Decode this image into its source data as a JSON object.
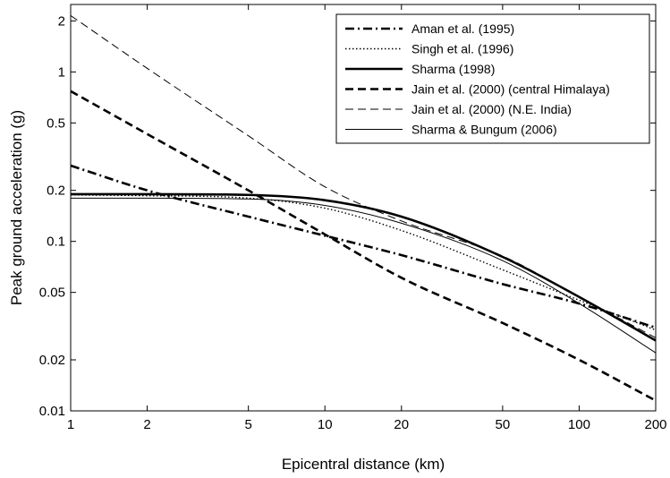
{
  "chart_data": {
    "type": "line",
    "title": "",
    "xlabel": "Epicentral distance (km)",
    "ylabel": "Peak ground acceleration (g)",
    "xscale": "log",
    "yscale": "log",
    "xlim": [
      1,
      200
    ],
    "ylim": [
      0.01,
      2.5
    ],
    "grid": false,
    "legend_position": "top-right",
    "x_ticks": [
      1,
      2,
      5,
      10,
      20,
      50,
      100,
      200
    ],
    "x_tick_labels": [
      "1",
      "2",
      "5",
      "10",
      "20",
      "50",
      "100",
      "200"
    ],
    "y_ticks": [
      0.01,
      0.02,
      0.05,
      0.1,
      0.2,
      0.5,
      1,
      2
    ],
    "y_tick_labels": [
      "0.01",
      "0.02",
      "0.05",
      "0.1",
      "0.2",
      "0.5",
      "1",
      "2"
    ],
    "x": [
      1,
      2,
      5,
      10,
      20,
      50,
      100,
      200
    ],
    "series": [
      {
        "name": "Aman et al. (1995)",
        "style": "dash-dot",
        "color": "#000000",
        "weight": "bold",
        "values": [
          0.28,
          0.2,
          0.14,
          0.108,
          0.083,
          0.056,
          0.043,
          0.031
        ]
      },
      {
        "name": "Singh et al. (1996)",
        "style": "dotted",
        "color": "#000000",
        "weight": "normal",
        "values": [
          0.188,
          0.186,
          0.18,
          0.157,
          0.116,
          0.068,
          0.045,
          0.03
        ]
      },
      {
        "name": "Sharma (1998)",
        "style": "solid",
        "color": "#000000",
        "weight": "bold",
        "values": [
          0.19,
          0.19,
          0.188,
          0.175,
          0.14,
          0.081,
          0.047,
          0.026
        ]
      },
      {
        "name": "Jain et al. (2000) (central Himalaya)",
        "style": "dashed",
        "color": "#000000",
        "weight": "bold",
        "values": [
          0.77,
          0.43,
          0.2,
          0.11,
          0.061,
          0.033,
          0.02,
          0.0115
        ]
      },
      {
        "name": "Jain et al. (2000) (N.E. India)",
        "style": "dashed",
        "color": "#000000",
        "weight": "thin",
        "values": [
          2.15,
          1.05,
          0.42,
          0.21,
          0.132,
          0.082,
          0.047,
          0.027
        ]
      },
      {
        "name": "Sharma & Bungum (2006)",
        "style": "solid",
        "color": "#000000",
        "weight": "thin",
        "values": [
          0.18,
          0.18,
          0.178,
          0.163,
          0.128,
          0.077,
          0.043,
          0.022
        ]
      }
    ]
  }
}
